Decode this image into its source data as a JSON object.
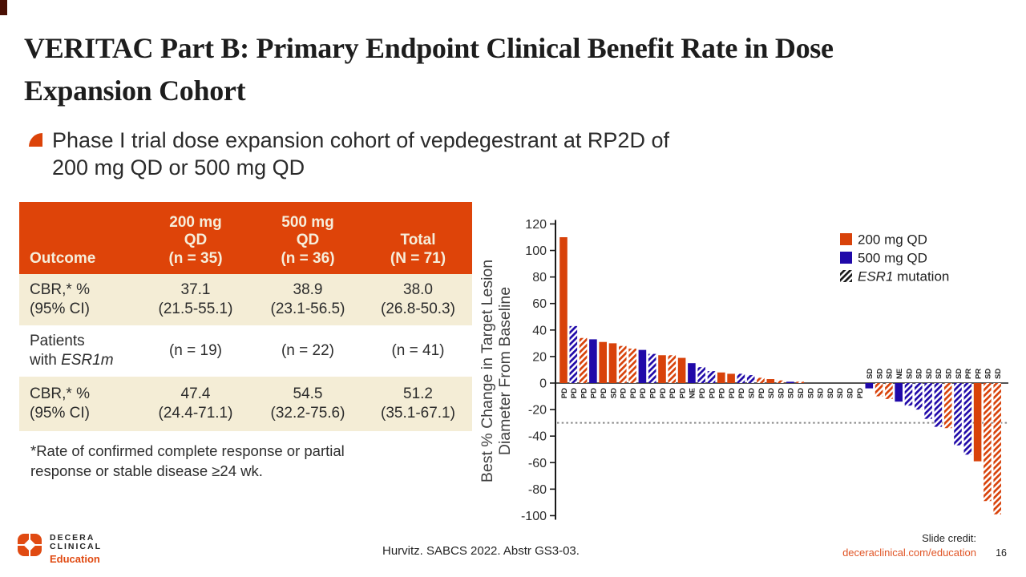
{
  "slide": {
    "title_lines": [
      "VERITAC Part B: Primary Endpoint Clinical Benefit Rate in Dose",
      "Expansion Cohort"
    ],
    "bullet_lines": [
      "Phase I trial dose expansion cohort of vepdegestrant at RP2D of",
      "200 mg QD or 500 mg QD"
    ],
    "page_number": "16"
  },
  "colors": {
    "accent_orange": "#de4409",
    "dose_200_orange": "#d8420a",
    "dose_500_blue": "#2009a9",
    "row_cream": "#f4edd6",
    "corner_maroon": "#4a0f03",
    "link_orange": "#e05425"
  },
  "table": {
    "header": {
      "outcome": "Outcome",
      "col1": [
        "200 mg",
        "QD",
        "(n = 35)"
      ],
      "col2": [
        "500 mg",
        "QD",
        "(n = 36)"
      ],
      "col3": [
        "Total",
        "(N = 71)"
      ]
    },
    "rows": [
      {
        "outcome": [
          "CBR,* %",
          "(95% CI)"
        ],
        "cells": [
          [
            "37.1",
            "(21.5-55.1)"
          ],
          [
            "38.9",
            "(23.1-56.5)"
          ],
          [
            "38.0",
            "(26.8-50.3)"
          ]
        ]
      },
      {
        "outcome_line1": "Patients",
        "outcome_line2_pre": "with ",
        "outcome_line2_italic": "ESR1m",
        "cells": [
          [
            "(n = 19)"
          ],
          [
            "(n = 22)"
          ],
          [
            "(n = 41)"
          ]
        ]
      },
      {
        "outcome": [
          "CBR,* %",
          "(95% CI)"
        ],
        "cells": [
          [
            "47.4",
            "(24.4-71.1)"
          ],
          [
            "54.5",
            "(32.2-75.6)"
          ],
          [
            "51.2",
            "(35.1-67.1)"
          ]
        ]
      }
    ]
  },
  "footnote_lines": [
    "*Rate of confirmed complete response or partial",
    "response or stable disease ≥24 wk."
  ],
  "chart_data": {
    "type": "bar",
    "subtype": "waterfall",
    "title": "",
    "xlabel": "",
    "ylabel": "Best % Change in Target Lesion Diameter From Baseline",
    "ylabel_lines": [
      "Best % Change in Target Lesion",
      "Diameter From Baseline"
    ],
    "ylim": [
      -100,
      120
    ],
    "yticks": [
      120,
      100,
      80,
      60,
      40,
      20,
      0,
      -20,
      -40,
      -60,
      -80,
      -100
    ],
    "reference_line": -30,
    "grid": false,
    "legend_position": "top-right",
    "legend": [
      {
        "hatch": false,
        "color": "#d8420a",
        "label": "200 mg QD"
      },
      {
        "hatch": false,
        "color": "#2009a9",
        "label": "500 mg QD"
      },
      {
        "hatch": true,
        "label_italic": "ESR1",
        "label": " mutation"
      }
    ],
    "bars": [
      {
        "value": 110,
        "dose": "200",
        "esr1": false,
        "response": "PD"
      },
      {
        "value": 43,
        "dose": "500",
        "esr1": true,
        "response": "PD"
      },
      {
        "value": 34,
        "dose": "200",
        "esr1": true,
        "response": "PD"
      },
      {
        "value": 33,
        "dose": "500",
        "esr1": false,
        "response": "PD"
      },
      {
        "value": 31,
        "dose": "200",
        "esr1": false,
        "response": "PD"
      },
      {
        "value": 30,
        "dose": "200",
        "esr1": false,
        "response": "SD"
      },
      {
        "value": 28,
        "dose": "200",
        "esr1": true,
        "response": "PD"
      },
      {
        "value": 26,
        "dose": "200",
        "esr1": true,
        "response": "PD"
      },
      {
        "value": 25,
        "dose": "500",
        "esr1": false,
        "response": "PD"
      },
      {
        "value": 22,
        "dose": "500",
        "esr1": true,
        "response": "PD"
      },
      {
        "value": 21,
        "dose": "200",
        "esr1": false,
        "response": "PD"
      },
      {
        "value": 21,
        "dose": "200",
        "esr1": true,
        "response": "PD"
      },
      {
        "value": 19,
        "dose": "200",
        "esr1": false,
        "response": "PD"
      },
      {
        "value": 15,
        "dose": "500",
        "esr1": false,
        "response": "NE"
      },
      {
        "value": 12,
        "dose": "500",
        "esr1": true,
        "response": "PD"
      },
      {
        "value": 9,
        "dose": "500",
        "esr1": true,
        "response": "PD"
      },
      {
        "value": 8,
        "dose": "200",
        "esr1": false,
        "response": "PD"
      },
      {
        "value": 7,
        "dose": "200",
        "esr1": false,
        "response": "PD"
      },
      {
        "value": 7,
        "dose": "500",
        "esr1": true,
        "response": "PD"
      },
      {
        "value": 6,
        "dose": "500",
        "esr1": true,
        "response": "SD"
      },
      {
        "value": 4,
        "dose": "200",
        "esr1": true,
        "response": "PD"
      },
      {
        "value": 3,
        "dose": "200",
        "esr1": false,
        "response": "SD"
      },
      {
        "value": 2,
        "dose": "200",
        "esr1": true,
        "response": "SD"
      },
      {
        "value": 1,
        "dose": "500",
        "esr1": false,
        "response": "SD"
      },
      {
        "value": 1,
        "dose": "200",
        "esr1": true,
        "response": "SD"
      },
      {
        "value": 0,
        "dose": null,
        "esr1": null,
        "response": "SD"
      },
      {
        "value": 0,
        "dose": null,
        "esr1": null,
        "response": "SD"
      },
      {
        "value": 0,
        "dose": null,
        "esr1": null,
        "response": "SD"
      },
      {
        "value": 0,
        "dose": null,
        "esr1": null,
        "response": "SD"
      },
      {
        "value": 0,
        "dose": null,
        "esr1": null,
        "response": "SD"
      },
      {
        "value": 0,
        "dose": null,
        "esr1": null,
        "response": "PD"
      },
      {
        "value": -4,
        "dose": "500",
        "esr1": false,
        "response": "SD"
      },
      {
        "value": -10,
        "dose": "200",
        "esr1": true,
        "response": "SD"
      },
      {
        "value": -12,
        "dose": "200",
        "esr1": true,
        "response": "SD"
      },
      {
        "value": -14,
        "dose": "500",
        "esr1": false,
        "response": "NE"
      },
      {
        "value": -17,
        "dose": "500",
        "esr1": true,
        "response": "SD"
      },
      {
        "value": -20,
        "dose": "500",
        "esr1": true,
        "response": "SD"
      },
      {
        "value": -27,
        "dose": "500",
        "esr1": true,
        "response": "SD"
      },
      {
        "value": -33,
        "dose": "500",
        "esr1": true,
        "response": "SD"
      },
      {
        "value": -34,
        "dose": "200",
        "esr1": true,
        "response": "SD"
      },
      {
        "value": -47,
        "dose": "500",
        "esr1": true,
        "response": "SD"
      },
      {
        "value": -54,
        "dose": "500",
        "esr1": true,
        "response": "PR"
      },
      {
        "value": -59,
        "dose": "200",
        "esr1": false,
        "response": "PR"
      },
      {
        "value": -89,
        "dose": "200",
        "esr1": true,
        "response": "SD"
      },
      {
        "value": -99,
        "dose": "200",
        "esr1": true,
        "response": "SD"
      }
    ]
  },
  "footer": {
    "brand_line1": "DECERA",
    "brand_line2": "CLINICAL",
    "brand_line3": "Education",
    "citation": "Hurvitz. SABCS 2022. Abstr GS3-03.",
    "credit_label": "Slide credit:",
    "credit_link": "deceraclinical.com/education"
  }
}
